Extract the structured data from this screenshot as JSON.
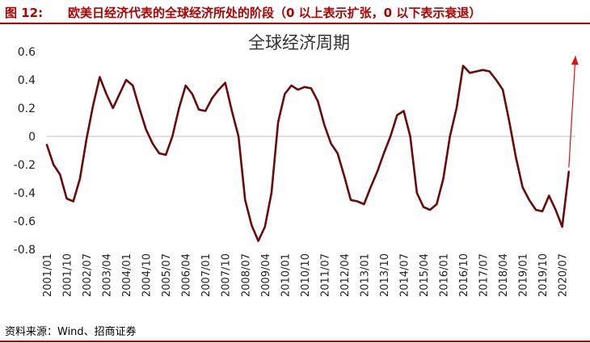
{
  "figure": {
    "label": "图 12:",
    "caption": "欧美日经济代表的全球经济所处的阶段（0 以上表示扩张，0 以下表示衰退）",
    "source": "资料来源：Wind、招商证券",
    "accent_color": "#b00000"
  },
  "chart_data": {
    "type": "line",
    "title": "全球经济周期",
    "xlabel": "",
    "ylabel": "",
    "ylim": [
      -0.8,
      0.6
    ],
    "yticks": [
      0.6,
      0.4,
      0.2,
      0,
      -0.2,
      -0.4,
      -0.6,
      -0.8
    ],
    "ytick_labels": [
      "0.6",
      "0.4",
      "0.2",
      "0",
      "-0.2",
      "-0.4",
      "-0.6",
      "-0.8"
    ],
    "x_range": [
      "2001/01",
      "2021/01"
    ],
    "x_tick_labels": [
      "2001/01",
      "2001/10",
      "2002/07",
      "2003/04",
      "2004/01",
      "2004/10",
      "2005/07",
      "2006/04",
      "2007/01",
      "2007/10",
      "2008/07",
      "2009/04",
      "2010/01",
      "2010/10",
      "2011/07",
      "2012/04",
      "2013/01",
      "2013/10",
      "2014/07",
      "2015/04",
      "2016/01",
      "2016/10",
      "2017/07",
      "2018/04",
      "2019/01",
      "2019/10",
      "2020/07"
    ],
    "grid": false,
    "legend": "none",
    "series_color": "#6b0a0a",
    "arrow_color": "#e01010",
    "arrow": {
      "from": {
        "x": "2020/10",
        "y": -0.22
      },
      "to": {
        "x": "2021/01",
        "y": 0.57
      }
    },
    "series": [
      {
        "x": [
          "2001/01",
          "2001/04",
          "2001/07",
          "2001/10",
          "2002/01",
          "2002/04",
          "2002/07",
          "2002/10",
          "2003/01",
          "2003/04",
          "2003/07",
          "2003/10",
          "2004/01",
          "2004/04",
          "2004/07",
          "2004/10",
          "2005/01",
          "2005/04",
          "2005/07",
          "2005/10",
          "2006/01",
          "2006/04",
          "2006/07",
          "2006/10",
          "2007/01",
          "2007/04",
          "2007/07",
          "2007/10",
          "2008/01",
          "2008/04",
          "2008/07",
          "2008/10",
          "2009/01",
          "2009/04",
          "2009/07",
          "2009/10",
          "2010/01",
          "2010/04",
          "2010/07",
          "2010/10",
          "2011/01",
          "2011/04",
          "2011/07",
          "2011/10",
          "2012/01",
          "2012/04",
          "2012/07",
          "2012/10",
          "2013/01",
          "2013/04",
          "2013/07",
          "2013/10",
          "2014/01",
          "2014/04",
          "2014/07",
          "2014/10",
          "2015/01",
          "2015/04",
          "2015/07",
          "2015/10",
          "2016/01",
          "2016/04",
          "2016/07",
          "2016/10",
          "2017/01",
          "2017/04",
          "2017/07",
          "2017/10",
          "2018/01",
          "2018/04",
          "2018/07",
          "2018/10",
          "2019/01",
          "2019/04",
          "2019/07",
          "2019/10",
          "2020/01",
          "2020/04",
          "2020/07",
          "2020/10"
        ],
        "values": [
          -0.06,
          -0.2,
          -0.27,
          -0.44,
          -0.46,
          -0.3,
          -0.02,
          0.22,
          0.42,
          0.3,
          0.2,
          0.3,
          0.4,
          0.36,
          0.2,
          0.05,
          -0.05,
          -0.12,
          -0.13,
          0.0,
          0.2,
          0.36,
          0.3,
          0.19,
          0.18,
          0.27,
          0.33,
          0.38,
          0.18,
          0.0,
          -0.45,
          -0.63,
          -0.74,
          -0.64,
          -0.4,
          0.1,
          0.3,
          0.36,
          0.33,
          0.35,
          0.34,
          0.25,
          0.08,
          -0.05,
          -0.12,
          -0.28,
          -0.45,
          -0.46,
          -0.48,
          -0.36,
          -0.25,
          -0.12,
          0.0,
          0.15,
          0.18,
          0.0,
          -0.4,
          -0.5,
          -0.52,
          -0.48,
          -0.3,
          0.0,
          0.2,
          0.5,
          0.45,
          0.46,
          0.47,
          0.46,
          0.4,
          0.33,
          0.1,
          -0.15,
          -0.36,
          -0.45,
          -0.52,
          -0.53,
          -0.42,
          -0.52,
          -0.64,
          -0.25
        ]
      }
    ]
  }
}
